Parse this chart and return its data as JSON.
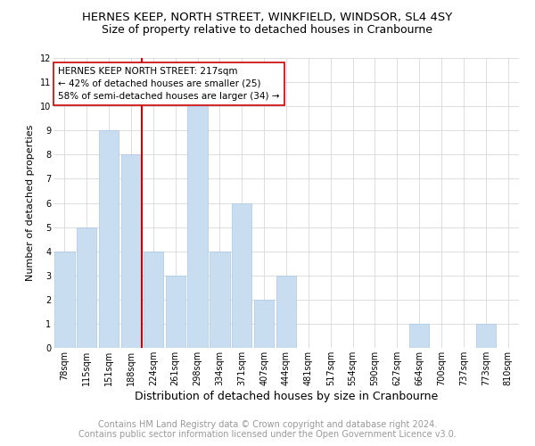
{
  "title": "HERNES KEEP, NORTH STREET, WINKFIELD, WINDSOR, SL4 4SY",
  "subtitle": "Size of property relative to detached houses in Cranbourne",
  "xlabel": "Distribution of detached houses by size in Cranbourne",
  "ylabel": "Number of detached properties",
  "categories": [
    "78sqm",
    "115sqm",
    "151sqm",
    "188sqm",
    "224sqm",
    "261sqm",
    "298sqm",
    "334sqm",
    "371sqm",
    "407sqm",
    "444sqm",
    "481sqm",
    "517sqm",
    "554sqm",
    "590sqm",
    "627sqm",
    "664sqm",
    "700sqm",
    "737sqm",
    "773sqm",
    "810sqm"
  ],
  "values": [
    4,
    5,
    9,
    8,
    4,
    3,
    10,
    4,
    6,
    2,
    3,
    0,
    0,
    0,
    0,
    0,
    1,
    0,
    0,
    1,
    0
  ],
  "bar_color": "#c9ddf0",
  "bar_edgecolor": "#a8c8e8",
  "redline_color": "#cc0000",
  "annotation_line1": "HERNES KEEP NORTH STREET: 217sqm",
  "annotation_line2": "← 42% of detached houses are smaller (25)",
  "annotation_line3": "58% of semi-detached houses are larger (34) →",
  "annotation_box_color": "#ffffff",
  "annotation_box_edgecolor": "#cc0000",
  "ylim": [
    0,
    12
  ],
  "yticks": [
    0,
    1,
    2,
    3,
    4,
    5,
    6,
    7,
    8,
    9,
    10,
    11,
    12
  ],
  "grid_color": "#d0d0d0",
  "footer1": "Contains HM Land Registry data © Crown copyright and database right 2024.",
  "footer2": "Contains public sector information licensed under the Open Government Licence v3.0.",
  "title_fontsize": 9.5,
  "subtitle_fontsize": 9,
  "xlabel_fontsize": 9,
  "ylabel_fontsize": 8,
  "footer_fontsize": 7,
  "annotation_fontsize": 7.5,
  "tick_fontsize": 7
}
